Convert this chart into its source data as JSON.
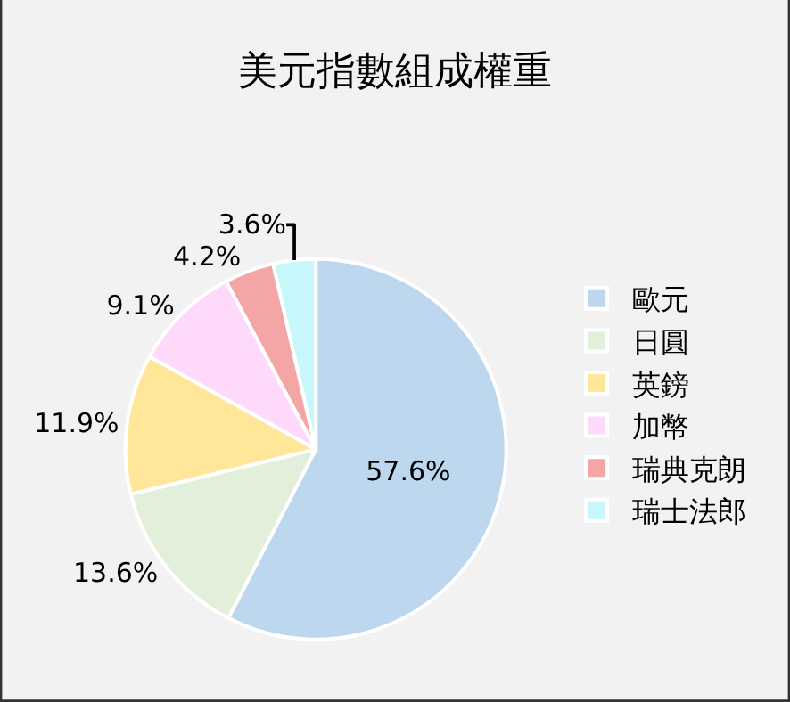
{
  "chart_data": {
    "type": "pie",
    "title": "美元指數組成權重",
    "categories": [
      "歐元",
      "日圓",
      "英鎊",
      "加幣",
      "瑞典克朗",
      "瑞士法郎"
    ],
    "values": [
      57.6,
      13.6,
      11.9,
      9.1,
      4.2,
      3.6
    ],
    "value_labels": [
      "57.6%",
      "13.6%",
      "11.9%",
      "9.1%",
      "4.2%",
      "3.6%"
    ],
    "colors": [
      "#bdd7ee",
      "#e2efda",
      "#ffe699",
      "#ffd9f9",
      "#f4a6a6",
      "#c6f8fb"
    ],
    "legend": "right"
  }
}
